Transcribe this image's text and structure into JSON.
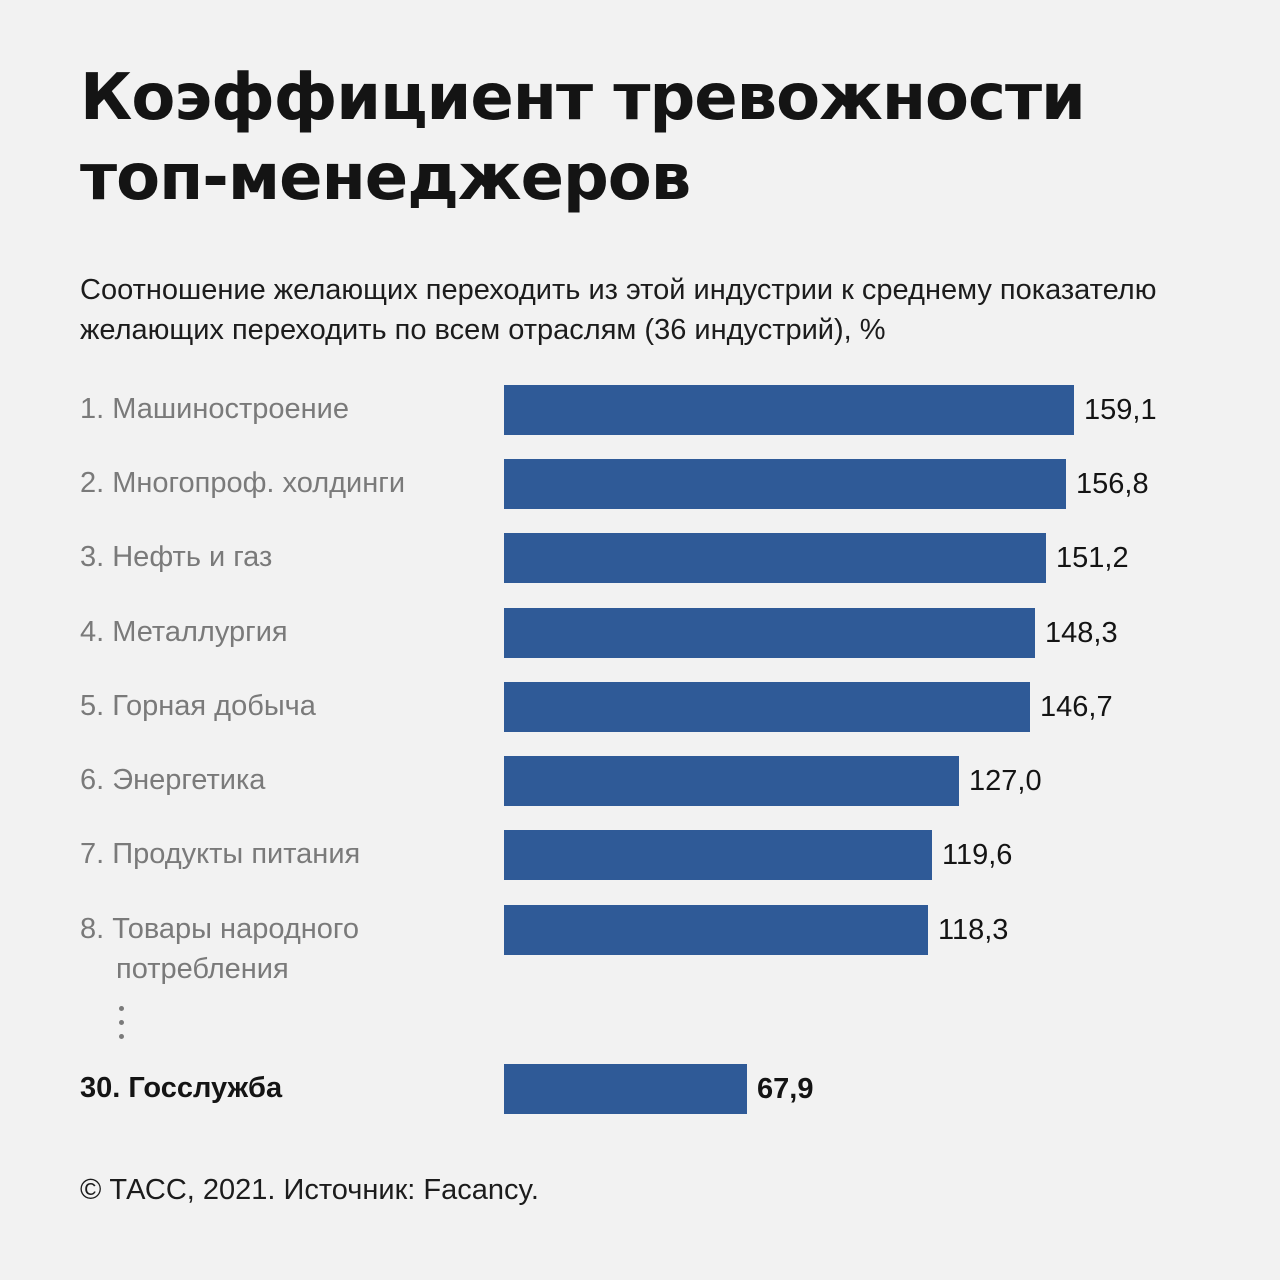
{
  "chart_data": {
    "type": "bar",
    "orientation": "horizontal",
    "title": "Коэффициент тревожности топ-менеджеров",
    "subtitle": "Соотношение желающих переходить из этой индустрии к среднему показателю желающих переходить по всем отраслям (36 индустрий), %",
    "categories": [
      "1. Машиностроение",
      "2. Многопроф. холдинги",
      "3. Нефть и газ",
      "4. Металлургия",
      "5. Горная добыча",
      "6. Энергетика",
      "7. Продукты питания",
      "8. Товары народного потребления",
      "30. Госслужба"
    ],
    "values": [
      159.1,
      156.8,
      151.2,
      148.3,
      146.7,
      127.0,
      119.6,
      118.3,
      67.9
    ],
    "value_labels": [
      "159,1",
      "156,8",
      "151,2",
      "148,3",
      "146,7",
      "127,0",
      "119,6",
      "118,3",
      "67,9"
    ],
    "highlighted_index": 8,
    "gap_after_index": 7,
    "bar_color": "#2f5a97",
    "xlim": [
      0,
      159.1
    ],
    "grid": false,
    "legend": "none"
  },
  "footer": "© ТАСС, 2021. Источник: Facancy."
}
